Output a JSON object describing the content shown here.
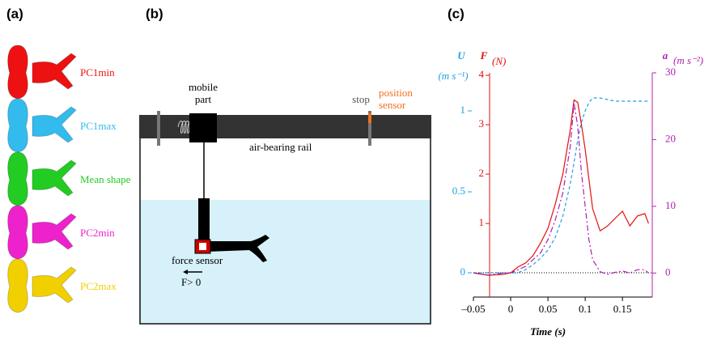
{
  "panel_labels": [
    "(a)",
    "(b)",
    "(c)"
  ],
  "shapes": [
    {
      "label": "PC1min",
      "color": "#ee1111"
    },
    {
      "label": "PC1max",
      "color": "#33bbee"
    },
    {
      "label": "Mean shape",
      "color": "#22cc22"
    },
    {
      "label": "PC2min",
      "color": "#ee22cc"
    },
    {
      "label": "PC2max",
      "color": "#f2d000"
    }
  ],
  "setup": {
    "mobile_part": [
      "mobile",
      "part"
    ],
    "stop": "stop",
    "position_sensor": [
      "position",
      "sensor"
    ],
    "rail": "air-bearing rail",
    "force_sensor": "force sensor",
    "force_direction": "F> 0"
  },
  "chart_data": {
    "type": "line",
    "x_label": "Time (s)",
    "y_label": "U",
    "y_unit": "(m s⁻¹)",
    "y2_label": "F",
    "y2_unit": "(N)",
    "y3_label": "a",
    "y3_unit": "(m s⁻²)",
    "xlim": [
      -0.05,
      0.19
    ],
    "xticks": [
      {
        "value": -0.05,
        "label": "–0.05"
      },
      0,
      0.05,
      0.1,
      0.15
    ],
    "ylim": [
      -0.15,
      1.235
    ],
    "yticks": [
      0,
      0.5,
      1
    ],
    "y2lim": [
      -0.49,
      4.05
    ],
    "y2ticks": [
      1,
      2,
      3,
      4
    ],
    "y3lim": [
      -3.6,
      30
    ],
    "y3ticks": [
      0,
      10,
      20,
      30
    ],
    "zero_line": true,
    "x": [
      -0.05,
      -0.03,
      -0.01,
      0,
      0.01,
      0.02,
      0.03,
      0.04,
      0.05,
      0.06,
      0.07,
      0.08,
      0.085,
      0.09,
      0.095,
      0.1,
      0.105,
      0.11,
      0.12,
      0.13,
      0.14,
      0.15,
      0.16,
      0.17,
      0.18,
      0.185
    ],
    "series": [
      {
        "name": "U",
        "color": "#22a0e0",
        "dash": "4,3",
        "axis": "y",
        "values": [
          0,
          0,
          0,
          0,
          0,
          0.02,
          0.05,
          0.09,
          0.14,
          0.22,
          0.35,
          0.55,
          0.68,
          0.82,
          0.93,
          1.0,
          1.05,
          1.08,
          1.08,
          1.07,
          1.06,
          1.06,
          1.06,
          1.06,
          1.06,
          1.06
        ]
      },
      {
        "name": "F",
        "color": "#e01010",
        "dash": "none",
        "axis": "y2",
        "values": [
          0,
          -0.05,
          -0.03,
          0,
          0.12,
          0.2,
          0.35,
          0.6,
          0.9,
          1.4,
          2.0,
          2.9,
          3.5,
          3.45,
          3.0,
          2.5,
          1.9,
          1.3,
          0.85,
          0.95,
          1.1,
          1.25,
          0.95,
          1.15,
          1.2,
          1.0
        ]
      },
      {
        "name": "a",
        "color": "#b020b0",
        "dash": "7,3,2,3",
        "axis": "y3",
        "values": [
          0,
          -0.3,
          0,
          0,
          0.5,
          1,
          2,
          3,
          5,
          8,
          12,
          19,
          25.5,
          22,
          15,
          10,
          5,
          2,
          0.2,
          -0.2,
          0.1,
          0.3,
          0,
          0.5,
          0.5,
          0
        ]
      }
    ]
  }
}
